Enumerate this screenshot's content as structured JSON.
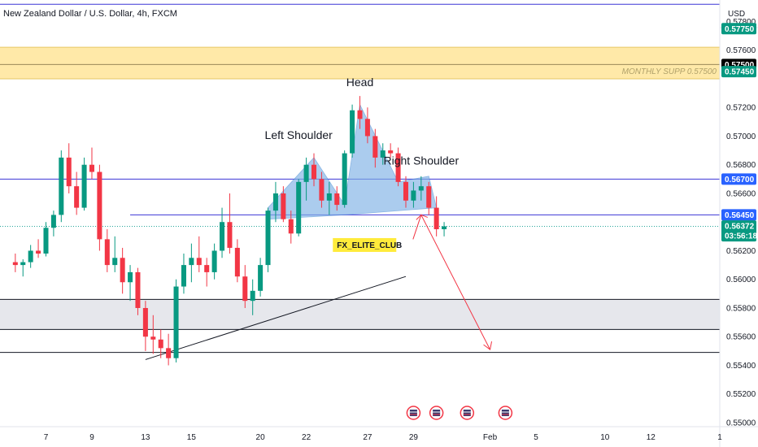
{
  "chart_data": {
    "type": "candlestick",
    "title": "New Zealand Dollar / U.S. Dollar, 4h, FXCM",
    "currency": "USD",
    "ylim": [
      0.55,
      0.5795
    ],
    "y_ticks": [
      "0.57800",
      "0.57600",
      "0.57200",
      "0.57000",
      "0.56800",
      "0.56600",
      "0.56200",
      "0.56000",
      "0.55800",
      "0.55600",
      "0.55400",
      "0.55200",
      "0.55000"
    ],
    "y_tick_values": [
      0.578,
      0.576,
      0.572,
      0.57,
      0.568,
      0.566,
      0.562,
      0.56,
      0.558,
      0.556,
      0.554,
      0.552,
      0.55
    ],
    "x_ticks": [
      "7",
      "9",
      "13",
      "15",
      "20",
      "22",
      "27",
      "29",
      "Feb",
      "5",
      "10",
      "12",
      "1"
    ],
    "x_tick_values": [
      4,
      10,
      17,
      23,
      32,
      38,
      46,
      52,
      62,
      68,
      77,
      83,
      92
    ],
    "x_range": [
      -2,
      92
    ],
    "candles": [
      [
        0.5612,
        0.5618,
        0.5605,
        0.561
      ],
      [
        0.561,
        0.5614,
        0.5602,
        0.5612
      ],
      [
        0.5612,
        0.5624,
        0.5608,
        0.562
      ],
      [
        0.562,
        0.5628,
        0.5615,
        0.5618
      ],
      [
        0.5618,
        0.564,
        0.5616,
        0.5636
      ],
      [
        0.5636,
        0.5648,
        0.563,
        0.5645
      ],
      [
        0.5645,
        0.569,
        0.564,
        0.5685
      ],
      [
        0.5685,
        0.5695,
        0.566,
        0.5665
      ],
      [
        0.5665,
        0.5675,
        0.5645,
        0.565
      ],
      [
        0.565,
        0.5685,
        0.5648,
        0.568
      ],
      [
        0.568,
        0.5692,
        0.567,
        0.5675
      ],
      [
        0.5675,
        0.568,
        0.562,
        0.5628
      ],
      [
        0.5628,
        0.5635,
        0.5605,
        0.561
      ],
      [
        0.561,
        0.563,
        0.5605,
        0.5615
      ],
      [
        0.5615,
        0.5622,
        0.559,
        0.5598
      ],
      [
        0.5598,
        0.561,
        0.5585,
        0.5605
      ],
      [
        0.5605,
        0.5608,
        0.5575,
        0.558
      ],
      [
        0.558,
        0.5585,
        0.555,
        0.556
      ],
      [
        0.556,
        0.5575,
        0.5548,
        0.5558
      ],
      [
        0.5558,
        0.5565,
        0.5545,
        0.5552
      ],
      [
        0.5552,
        0.5562,
        0.554,
        0.5545
      ],
      [
        0.5545,
        0.56,
        0.5542,
        0.5595
      ],
      [
        0.5595,
        0.5618,
        0.559,
        0.561
      ],
      [
        0.561,
        0.5625,
        0.5598,
        0.5615
      ],
      [
        0.5615,
        0.563,
        0.5605,
        0.561
      ],
      [
        0.561,
        0.5615,
        0.5595,
        0.5605
      ],
      [
        0.5605,
        0.5625,
        0.56,
        0.562
      ],
      [
        0.562,
        0.565,
        0.5615,
        0.564
      ],
      [
        0.564,
        0.566,
        0.5618,
        0.5622
      ],
      [
        0.5622,
        0.5628,
        0.5598,
        0.5602
      ],
      [
        0.5602,
        0.561,
        0.558,
        0.5585
      ],
      [
        0.5585,
        0.56,
        0.5575,
        0.5592
      ],
      [
        0.5592,
        0.5615,
        0.5588,
        0.561
      ],
      [
        0.561,
        0.565,
        0.5605,
        0.5648
      ],
      [
        0.5648,
        0.5668,
        0.564,
        0.566
      ],
      [
        0.566,
        0.5665,
        0.564,
        0.5642
      ],
      [
        0.5642,
        0.5648,
        0.5625,
        0.5632
      ],
      [
        0.5632,
        0.567,
        0.563,
        0.5668
      ],
      [
        0.5668,
        0.5685,
        0.5655,
        0.568
      ],
      [
        0.568,
        0.5688,
        0.5665,
        0.567
      ],
      [
        0.567,
        0.5675,
        0.565,
        0.5655
      ],
      [
        0.5655,
        0.5668,
        0.5645,
        0.566
      ],
      [
        0.566,
        0.5665,
        0.5648,
        0.5652
      ],
      [
        0.5652,
        0.569,
        0.565,
        0.5688
      ],
      [
        0.5688,
        0.5722,
        0.5685,
        0.5718
      ],
      [
        0.5718,
        0.5728,
        0.5705,
        0.5712
      ],
      [
        0.5712,
        0.572,
        0.5695,
        0.57
      ],
      [
        0.57,
        0.5705,
        0.5678,
        0.5685
      ],
      [
        0.5685,
        0.5695,
        0.568,
        0.569
      ],
      [
        0.569,
        0.5695,
        0.5685,
        0.5688
      ],
      [
        0.5688,
        0.5692,
        0.5665,
        0.5668
      ],
      [
        0.5668,
        0.5672,
        0.565,
        0.5655
      ],
      [
        0.5655,
        0.5668,
        0.565,
        0.5662
      ],
      [
        0.5662,
        0.5672,
        0.5655,
        0.5665
      ],
      [
        0.5665,
        0.5668,
        0.5645,
        0.565
      ],
      [
        0.565,
        0.5658,
        0.563,
        0.5635
      ],
      [
        0.5635,
        0.564,
        0.563,
        0.5637
      ]
    ],
    "price_labels": [
      {
        "text": "0.57750",
        "value": 0.5775,
        "color": "#089981"
      },
      {
        "text": "0.57500",
        "value": 0.575,
        "color": "#000000"
      },
      {
        "text": "0.57450",
        "value": 0.5745,
        "color": "#089981"
      },
      {
        "text": "0.56700",
        "value": 0.567,
        "color": "#2962ff"
      },
      {
        "text": "0.56450",
        "value": 0.5645,
        "color": "#2962ff"
      }
    ],
    "last_price": {
      "value": 0.56372,
      "text": "0.56372",
      "countdown": "03:56:18",
      "color": "#089981"
    },
    "horizontal_lines": [
      {
        "value": 0.5792,
        "color": "#3b35d6"
      },
      {
        "value": 0.567,
        "color": "#3b35d6"
      },
      {
        "value": 0.5645,
        "color": "#3b35d6",
        "x_start": 15
      },
      {
        "value": 0.5637,
        "color": "#26a69a",
        "dotted": true
      },
      {
        "value": 0.5549,
        "color": "#131722"
      }
    ],
    "zones": [
      {
        "label": "MONTHLY SUPP 0.57500",
        "from": 0.574,
        "to": 0.5762,
        "mid": 0.575,
        "color": "#ffe9a8"
      },
      {
        "label": "",
        "from": 0.5565,
        "to": 0.5586,
        "color": "#e6e7ec"
      }
    ],
    "trendline": {
      "from": [
        17,
        0.5544
      ],
      "to": [
        51,
        0.5602
      ]
    },
    "projection": [
      [
        53,
        0.5645
      ],
      [
        62,
        0.5551
      ]
    ],
    "pattern_labels": {
      "head": "Head",
      "left_shoulder": "Left Shoulder",
      "right_shoulder": "Right Shoulder"
    },
    "brand_label": "FX_ELITE_CLUB",
    "event_icon_positions": [
      52,
      55,
      59,
      64
    ]
  }
}
